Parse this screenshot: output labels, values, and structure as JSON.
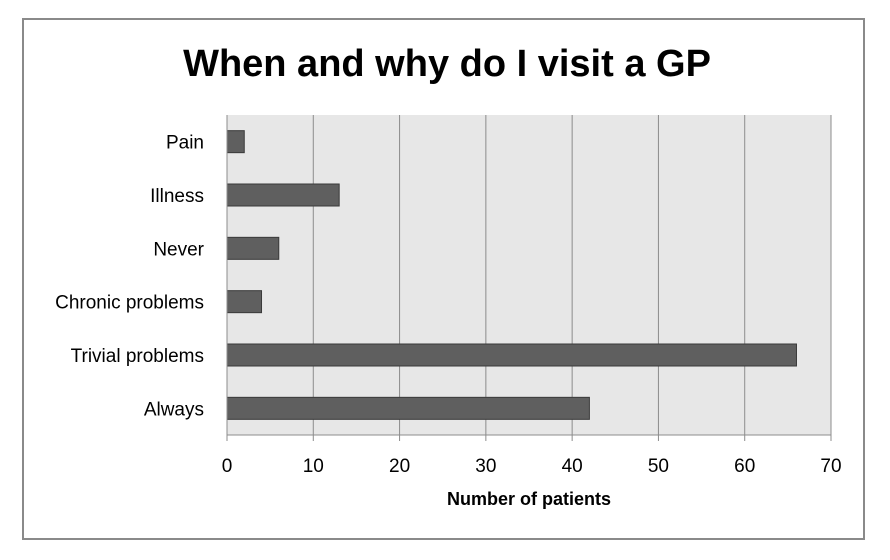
{
  "chart_data": {
    "type": "bar",
    "orientation": "horizontal",
    "title": "When and why do I visit a GP",
    "xlabel": "Number of patients",
    "ylabel": "",
    "categories": [
      "Pain",
      "Illness",
      "Never",
      "Chronic problems",
      "Trivial problems",
      "Always"
    ],
    "values": [
      2,
      13,
      6,
      4,
      66,
      42
    ],
    "xlim": [
      0,
      70
    ],
    "ticks": [
      "0",
      "10",
      "20",
      "30",
      "40",
      "50",
      "60",
      "70"
    ],
    "tick_values": [
      0,
      10,
      20,
      30,
      40,
      50,
      60,
      70
    ],
    "grid": true,
    "legend": "none",
    "colors": {
      "bar_fill": "#5f5f5f",
      "bar_stroke": "#3a3a3a",
      "plot_background": "#e7e7e7",
      "gridline": "#8c8c8c"
    }
  }
}
